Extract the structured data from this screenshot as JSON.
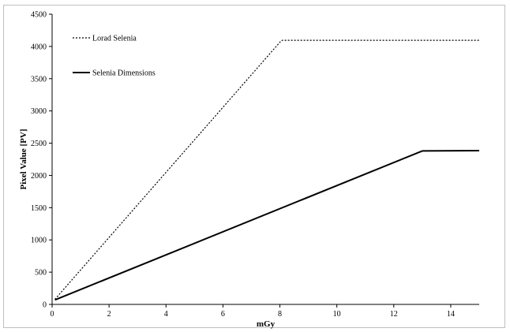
{
  "chart_data": {
    "type": "line",
    "title": "",
    "xlabel": "mGy",
    "ylabel": "Pixel Value [PV]",
    "xlim": [
      0,
      15
    ],
    "ylim": [
      0,
      4500
    ],
    "xticks": [
      0,
      2,
      4,
      6,
      8,
      10,
      12,
      14
    ],
    "yticks": [
      0,
      500,
      1000,
      1500,
      2000,
      2500,
      3000,
      3500,
      4000,
      4500
    ],
    "grid": false,
    "legend_position": "top-left",
    "series": [
      {
        "name": "Lorad Selenia",
        "style": "dotted",
        "color": "#000000",
        "x": [
          0.1,
          8.05,
          8.1,
          15
        ],
        "y": [
          80,
          4090,
          4095,
          4095
        ]
      },
      {
        "name": "Selenia Dimensions",
        "style": "solid",
        "color": "#000000",
        "x": [
          0.1,
          13.0,
          15
        ],
        "y": [
          70,
          2380,
          2385
        ]
      }
    ]
  }
}
